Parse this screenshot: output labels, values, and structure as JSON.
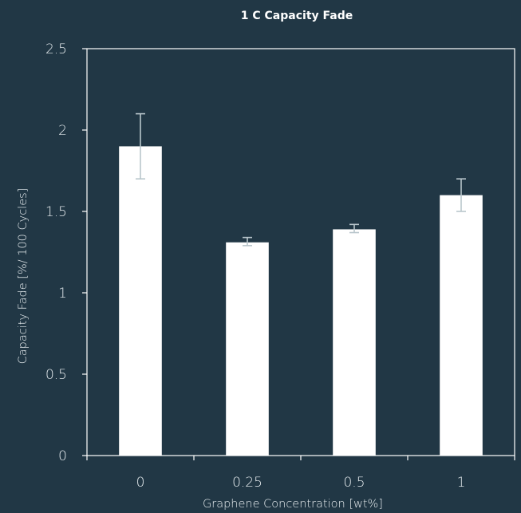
{
  "chart_data": {
    "type": "bar",
    "title": "1 C Capacity Fade",
    "xlabel": "Graphene Concentration [wt%]",
    "ylabel": "Capacity Fade [%/ 100 Cycles]",
    "categories": [
      "0",
      "0.25",
      "0.5",
      "1"
    ],
    "values": [
      1.9,
      1.31,
      1.39,
      1.6
    ],
    "error_low": [
      1.7,
      1.29,
      1.37,
      1.5
    ],
    "error_high": [
      2.1,
      1.34,
      1.42,
      1.7
    ],
    "ylim": [
      0,
      2.5
    ],
    "yticks": [
      "0",
      "0.5",
      "1",
      "1.5",
      "2",
      "2.5"
    ],
    "grid": false,
    "colors": {
      "background": "#213745",
      "bar": "#ffffff",
      "axis": "#ffffff",
      "error_bar": "#b9c6cc",
      "text": "#e6ecef"
    }
  }
}
